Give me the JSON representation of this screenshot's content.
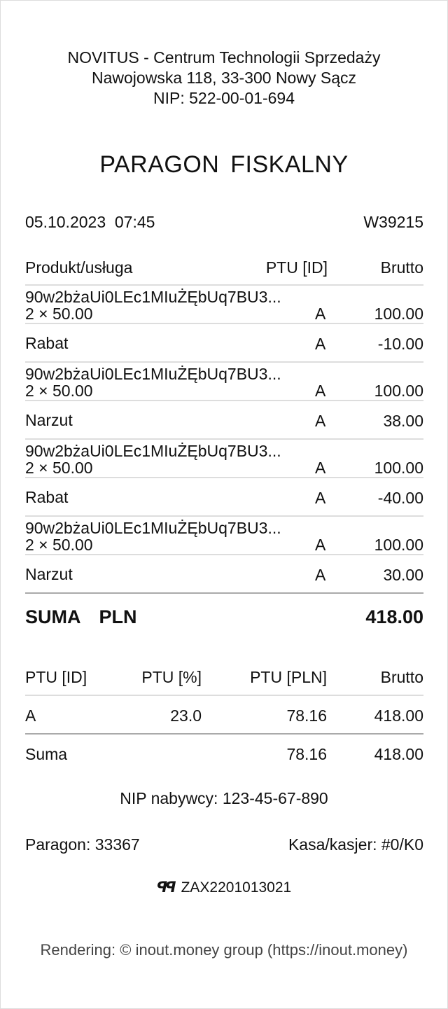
{
  "header": {
    "company": "NOVITUS - Centrum Technologii Sprzedaży",
    "address": "Nawojowska 118, 33-300 Nowy Sącz",
    "nip": "NIP: 522-00-01-694"
  },
  "title": "PARAGON FISKALNY",
  "datetime": "05.10.2023  07:45",
  "receipt_code": "W39215",
  "columns": {
    "product": "Produkt/usługa",
    "ptu": "PTU [ID]",
    "gross": "Brutto"
  },
  "items": [
    {
      "name": "90w2bżaUi0LEc1MIuŻĘbUq7BU3...",
      "qty": "2 × 50.00",
      "ptu": "A",
      "gross": "100.00"
    },
    {
      "name": "Rabat",
      "ptu": "A",
      "gross": "-10.00"
    },
    {
      "name": "90w2bżaUi0LEc1MIuŻĘbUq7BU3...",
      "qty": "2 × 50.00",
      "ptu": "A",
      "gross": "100.00"
    },
    {
      "name": "Narzut",
      "ptu": "A",
      "gross": "38.00"
    },
    {
      "name": "90w2bżaUi0LEc1MIuŻĘbUq7BU3...",
      "qty": "2 × 50.00",
      "ptu": "A",
      "gross": "100.00"
    },
    {
      "name": "Rabat",
      "ptu": "A",
      "gross": "-40.00"
    },
    {
      "name": "90w2bżaUi0LEc1MIuŻĘbUq7BU3...",
      "qty": "2 × 50.00",
      "ptu": "A",
      "gross": "100.00"
    },
    {
      "name": "Narzut",
      "ptu": "A",
      "gross": "30.00"
    }
  ],
  "total": {
    "label": "SUMA  PLN",
    "value": "418.00"
  },
  "vat": {
    "columns": {
      "id": "PTU [ID]",
      "pct": "PTU [%]",
      "pln": "PTU [PLN]",
      "gross": "Brutto"
    },
    "row": {
      "id": "A",
      "pct": "23.0",
      "pln": "78.16",
      "gross": "418.00"
    },
    "sum": {
      "label": "Suma",
      "pln": "78.16",
      "gross": "418.00"
    }
  },
  "buyer_nip": "NIP nabywcy: 123-45-67-890",
  "receipt_no": "Paragon: 33367",
  "register": "Kasa/kasjer: #0/K0",
  "fiscal_logo": "PL",
  "device_id": "ZAX2201013021",
  "footer": "Rendering: © inout.money group (https://inout.money)"
}
